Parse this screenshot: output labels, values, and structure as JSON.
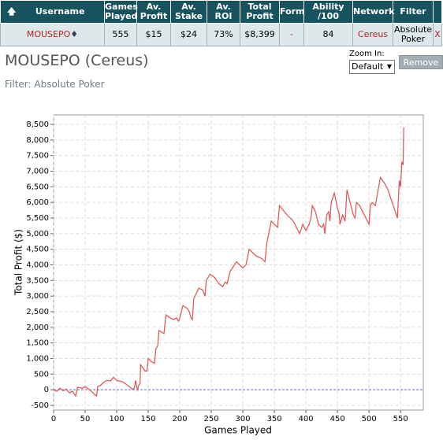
{
  "table": {
    "header": [
      "Username",
      "Games Played",
      "Av. Profit",
      "Av. Stake",
      "Av. ROI",
      "Total Profit",
      "Form",
      "Ability /100",
      "Network",
      "Filter"
    ],
    "rows": [
      [
        "MOUSEPO",
        "555",
        "$15",
        "$24",
        "73%",
        "$8,399",
        "-",
        "84",
        "Cereus",
        "Absolute Poker",
        "X"
      ]
    ]
  },
  "profile": {
    "title": "MOUSEPO (Cereus)",
    "filter": "Filter: Absolute Poker",
    "zoom_label": "Zoom In:",
    "zoom_option": "Default",
    "remove_button": "Remove"
  },
  "chart_data": {
    "type": "line",
    "x_label": "Games Played",
    "y_label": "Total Profit ($)",
    "color": "#e05050",
    "grid": true,
    "reference_line": {
      "value": 0,
      "color": "#6a6adf"
    },
    "x": [
      0,
      5,
      10,
      15,
      20,
      25,
      30,
      35,
      38,
      45,
      50,
      55,
      60,
      65,
      68,
      70,
      75,
      80,
      85,
      90,
      95,
      100,
      110,
      120,
      125,
      128,
      130,
      133,
      135,
      137,
      138,
      145,
      148,
      150,
      155,
      160,
      162,
      165,
      167,
      175,
      178,
      185,
      190,
      195,
      198,
      200,
      205,
      212,
      215,
      218,
      220,
      222,
      230,
      236,
      240,
      242,
      248,
      255,
      262,
      268,
      272,
      275,
      280,
      290,
      300,
      305,
      310,
      320,
      330,
      335,
      338,
      345,
      350,
      355,
      358,
      362,
      370,
      380,
      385,
      390,
      395,
      400,
      405,
      408,
      410,
      415,
      420,
      425,
      428,
      430,
      433,
      436,
      438,
      440,
      445,
      450,
      452,
      454,
      458,
      462,
      465,
      470,
      475,
      478,
      480,
      485,
      490,
      495,
      500,
      502,
      505,
      510,
      518,
      525,
      530,
      535,
      540,
      545,
      548,
      550,
      552,
      554,
      555
    ],
    "values": [
      0,
      -50,
      50,
      -30,
      20,
      -100,
      -50,
      -200,
      80,
      50,
      100,
      30,
      -50,
      -150,
      -200,
      100,
      150,
      250,
      300,
      280,
      400,
      300,
      250,
      100,
      20,
      50,
      300,
      -30,
      150,
      200,
      800,
      600,
      600,
      1000,
      900,
      850,
      1300,
      1400,
      1900,
      1800,
      2400,
      2300,
      2250,
      2300,
      2200,
      2300,
      2700,
      2600,
      2500,
      2300,
      2250,
      2900,
      3250,
      3200,
      3000,
      3500,
      3700,
      3600,
      3400,
      3300,
      3450,
      3400,
      3800,
      4100,
      3900,
      4000,
      4500,
      4300,
      4200,
      4100,
      4700,
      5400,
      5300,
      5200,
      5900,
      5800,
      5600,
      5400,
      5200,
      5000,
      5300,
      5100,
      5300,
      5500,
      5900,
      5700,
      5300,
      5200,
      5300,
      5000,
      5600,
      5700,
      5400,
      6000,
      6300,
      5800,
      5700,
      5300,
      5600,
      5400,
      6400,
      6000,
      5600,
      5500,
      6000,
      5900,
      5700,
      5500,
      5300,
      5900,
      6000,
      5900,
      6800,
      6600,
      6400,
      6100,
      5800,
      5500,
      6700,
      6500,
      7300,
      7200,
      8400
    ],
    "xlim": [
      0,
      586
    ],
    "xticks": [
      0,
      50,
      100,
      150,
      200,
      250,
      300,
      350,
      400,
      450,
      500,
      550
    ],
    "ylim": [
      -651,
      8802
    ],
    "yticks": [
      -500,
      0,
      500,
      {
        "value": 1000,
        "label": "1,000"
      },
      {
        "value": 1500,
        "label": "1,500"
      },
      {
        "value": 2000,
        "label": "2,000"
      },
      {
        "value": 2500,
        "label": "2,500"
      },
      {
        "value": 3000,
        "label": "3,000"
      },
      {
        "value": 3500,
        "label": "3,500"
      },
      {
        "value": 4000,
        "label": "4,000"
      },
      {
        "value": 4500,
        "label": "4,500"
      },
      {
        "value": 5000,
        "label": "5,000"
      },
      {
        "value": 5500,
        "label": "5,500"
      },
      {
        "value": 6000,
        "label": "6,000"
      },
      {
        "value": 6500,
        "label": "6,500"
      },
      {
        "value": 7000,
        "label": "7,000"
      },
      {
        "value": 7500,
        "label": "7,500"
      },
      {
        "value": 8000,
        "label": "8,000"
      },
      {
        "value": 8500,
        "label": "8,500"
      }
    ]
  }
}
